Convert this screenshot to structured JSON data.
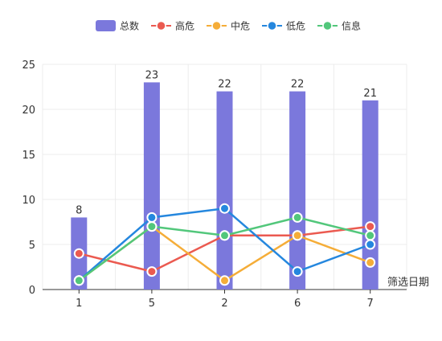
{
  "chart_data": {
    "type": "bar",
    "categories": [
      "1",
      "5",
      "2",
      "6",
      "7"
    ],
    "xlabel": "筛选日期",
    "ylim": [
      0,
      25
    ],
    "yticks": [
      0,
      5,
      10,
      15,
      20,
      25
    ],
    "grid": true,
    "legend_position": "top-center",
    "series": [
      {
        "name": "总数",
        "kind": "bar",
        "color": "#7b78dc",
        "values": [
          8,
          23,
          22,
          22,
          21
        ],
        "show_labels": true
      },
      {
        "name": "高危",
        "kind": "line",
        "color": "#eb5a50",
        "values": [
          4,
          2,
          6,
          6,
          7
        ]
      },
      {
        "name": "中危",
        "kind": "line",
        "color": "#f5ad38",
        "values": [
          1,
          7,
          1,
          6,
          3
        ]
      },
      {
        "name": "低危",
        "kind": "line",
        "color": "#2587de",
        "values": [
          1,
          8,
          9,
          2,
          5
        ]
      },
      {
        "name": "信息",
        "kind": "line",
        "color": "#52c77b",
        "values": [
          1,
          7,
          6,
          8,
          6
        ]
      }
    ]
  }
}
